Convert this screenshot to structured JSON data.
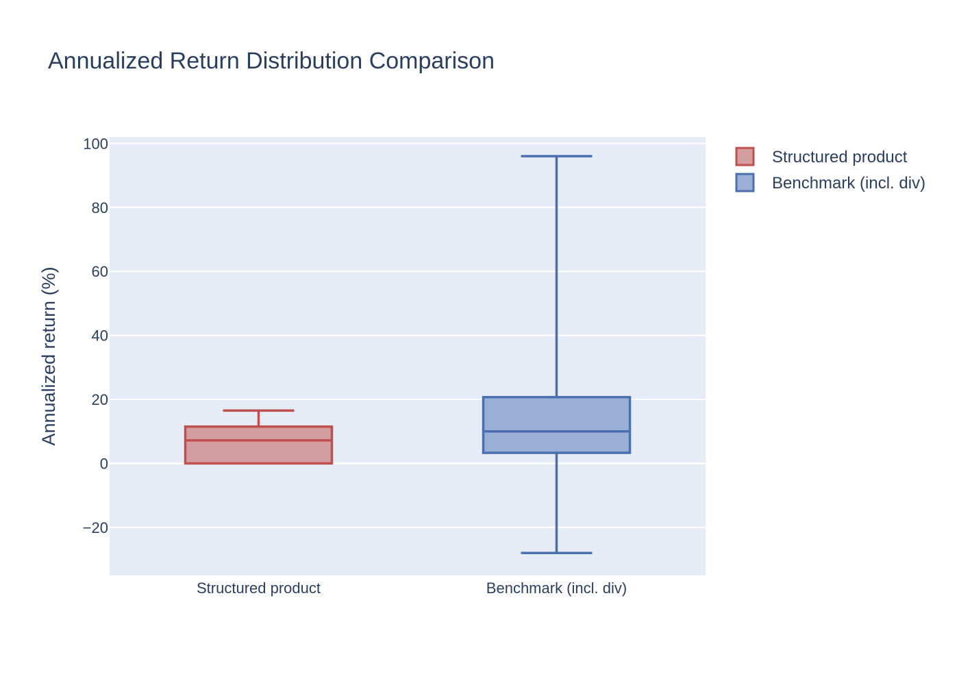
{
  "chart_data": {
    "type": "box",
    "title": "Annualized Return Distribution Comparison",
    "xlabel": "",
    "ylabel": "Annualized return (%)",
    "ylim": [
      -35,
      102
    ],
    "yticks": [
      100,
      80,
      60,
      40,
      20,
      0,
      -20
    ],
    "ytick_labels": [
      "100",
      "80",
      "60",
      "40",
      "20",
      "0",
      "−20"
    ],
    "grid": true,
    "legend_position": "top-right",
    "categories": [
      "Structured product",
      "Benchmark (incl. div)"
    ],
    "series": [
      {
        "name": "Structured product",
        "min": 0,
        "q1": 0,
        "median": 7.2,
        "q3": 11.5,
        "max": 16.5,
        "line_color": "#c0504d",
        "fill_color": "#d49ea1"
      },
      {
        "name": "Benchmark (incl. div)",
        "min": -28,
        "q1": 3.3,
        "median": 10,
        "q3": 20.7,
        "max": 96,
        "line_color": "#4a6fae",
        "fill_color": "#99afd6"
      }
    ],
    "colors": {
      "plot_bg": "#e5ecf6",
      "grid": "#ffffff",
      "text": "#2a3f5f"
    }
  }
}
